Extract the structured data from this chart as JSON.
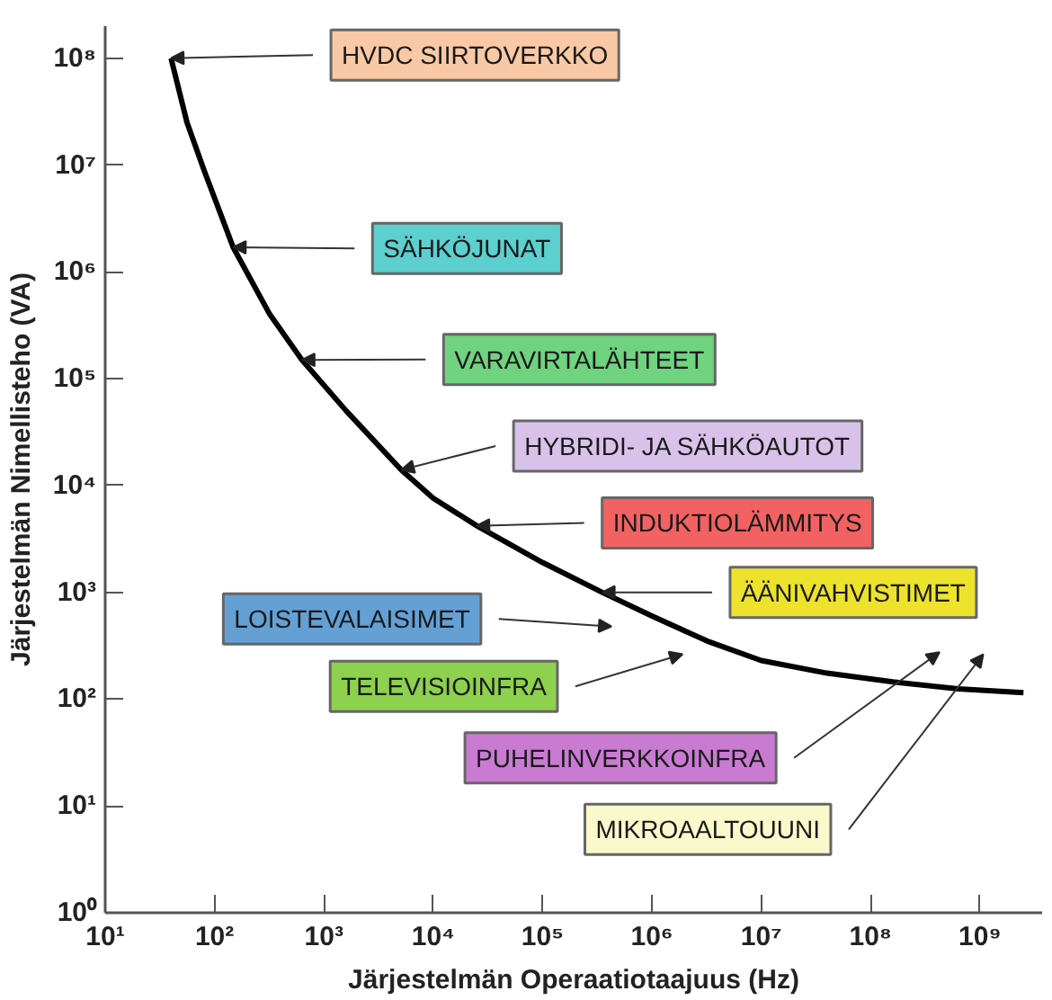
{
  "chart_data": {
    "type": "line",
    "xlabel": "Järjestelmän Operaatiotaajuus (Hz)",
    "ylabel": "Järjestelmän Nimellisteho (VA)",
    "log": "xy",
    "grid": false,
    "xlim": [
      10,
      3700000000
    ],
    "ylim": [
      1,
      200000000
    ],
    "xticks": [
      {
        "value": 10,
        "label": "10¹"
      },
      {
        "value": 100,
        "label": "10²"
      },
      {
        "value": 1000,
        "label": "10³"
      },
      {
        "value": 10000,
        "label": "10⁴"
      },
      {
        "value": 100000,
        "label": "10⁵"
      },
      {
        "value": 1000000,
        "label": "10⁶"
      },
      {
        "value": 10000000,
        "label": "10⁷"
      },
      {
        "value": 100000000,
        "label": "10⁸"
      },
      {
        "value": 1000000000,
        "label": "10⁹"
      }
    ],
    "yticks": [
      {
        "value": 1,
        "label": "10⁰"
      },
      {
        "value": 10,
        "label": "10¹"
      },
      {
        "value": 100,
        "label": "10²"
      },
      {
        "value": 1000,
        "label": "10³"
      },
      {
        "value": 10000,
        "label": "10⁴"
      },
      {
        "value": 100000,
        "label": "10⁵"
      },
      {
        "value": 1000000,
        "label": "10⁶"
      },
      {
        "value": 10000000,
        "label": "10⁷"
      },
      {
        "value": 100000000,
        "label": "10⁸"
      }
    ],
    "x": [
      40,
      56,
      80,
      148,
      320,
      630,
      1600,
      5100,
      10000,
      25000,
      100000,
      350000,
      1000000,
      3200000,
      10000000,
      40000000,
      160000000,
      630000000,
      2500000000
    ],
    "series": [
      {
        "color": "#000000",
        "values": [
          100000000,
          25000000,
          9000000,
          1700000,
          400000,
          150000,
          50000,
          14000,
          7600,
          4200,
          1900,
          1000,
          600,
          350,
          230,
          175,
          145,
          125,
          115
        ]
      }
    ],
    "annotations": [
      {
        "text": "HVDC SIIRTOVERKKO",
        "x": 40,
        "y": 100000000
      },
      {
        "text": "SÄHKÖJUNAT",
        "x": 148,
        "y": 1700000
      },
      {
        "text": "VARAVIRTALÄHTEET",
        "x": 630,
        "y": 150000
      },
      {
        "text": "HYBRIDI- JA SÄHKÖAUTOT",
        "x": 5100,
        "y": 14000
      },
      {
        "text": "INDUKTIOLÄMMITYS",
        "x": 25000,
        "y": 4200
      },
      {
        "text": "ÄÄNIVAHVISTIMET",
        "x": 350000,
        "y": 1000
      },
      "LOISTEVALAISIMET",
      "TELEVISIOINFRA",
      "PUHELINVERKKOINFRA",
      "MIKROAALTOUUNI"
    ]
  }
}
